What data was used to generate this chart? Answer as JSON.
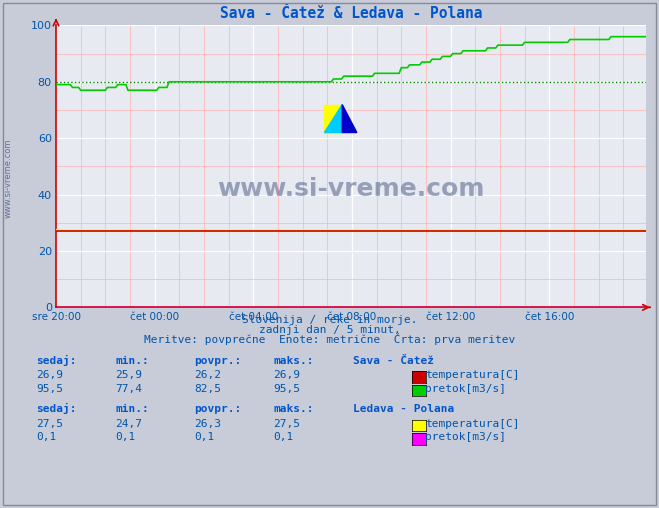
{
  "title": "Sava - Čatež & Ledava - Polana",
  "title_color": "#0055cc",
  "bg_color": "#c8ccd8",
  "plot_bg_color": "#e8eaf2",
  "grid_color_major": "#ffffff",
  "grid_color_minor": "#ffb0b0",
  "tick_label_color": "#0055aa",
  "xlim": [
    0,
    287
  ],
  "ylim": [
    0,
    100
  ],
  "yticks": [
    0,
    20,
    40,
    60,
    80,
    100
  ],
  "xtick_labels": [
    "sre 20:00",
    "čet 00:00",
    "čet 04:00",
    "čet 08:00",
    "čet 12:00",
    "čet 16:00"
  ],
  "xtick_positions": [
    0,
    48,
    96,
    144,
    192,
    240
  ],
  "subtitle1": "Slovenija / reke in morje.",
  "subtitle2": "zadnji dan / 5 minut.",
  "subtitle3": "Meritve: povprečne  Enote: metrične  Črta: prva meritev",
  "watermark_text": "www.si-vreme.com",
  "watermark_side": "www.si-vreme.com",
  "sava_temp_color": "#cc0000",
  "sava_pretok_color": "#00cc00",
  "ledava_temp_color": "#ffff00",
  "ledava_pretok_color": "#ff00ff",
  "dotted_line_color": "#008800",
  "dotted_line_y": 80,
  "axis_arrow_color": "#cc0000",
  "spine_color": "#cc0000",
  "header_color": "#0055cc",
  "stats_color": "#0055aa",
  "sava_title": "Sava - Čatež",
  "ledava_title": "Ledava - Polana",
  "col_headers": [
    "sedaj:",
    "min.:",
    "povpr.:",
    "maks.:"
  ],
  "sava_temp_stats": [
    "26,9",
    "25,9",
    "26,2",
    "26,9"
  ],
  "sava_pretok_stats": [
    "95,5",
    "77,4",
    "82,5",
    "95,5"
  ],
  "ledava_temp_stats": [
    "27,5",
    "24,7",
    "26,3",
    "27,5"
  ],
  "ledava_pretok_stats": [
    "0,1",
    "0,1",
    "0,1",
    "0,1"
  ],
  "label_temp": "temperatura[C]",
  "label_pretok": "pretok[m3/s]"
}
